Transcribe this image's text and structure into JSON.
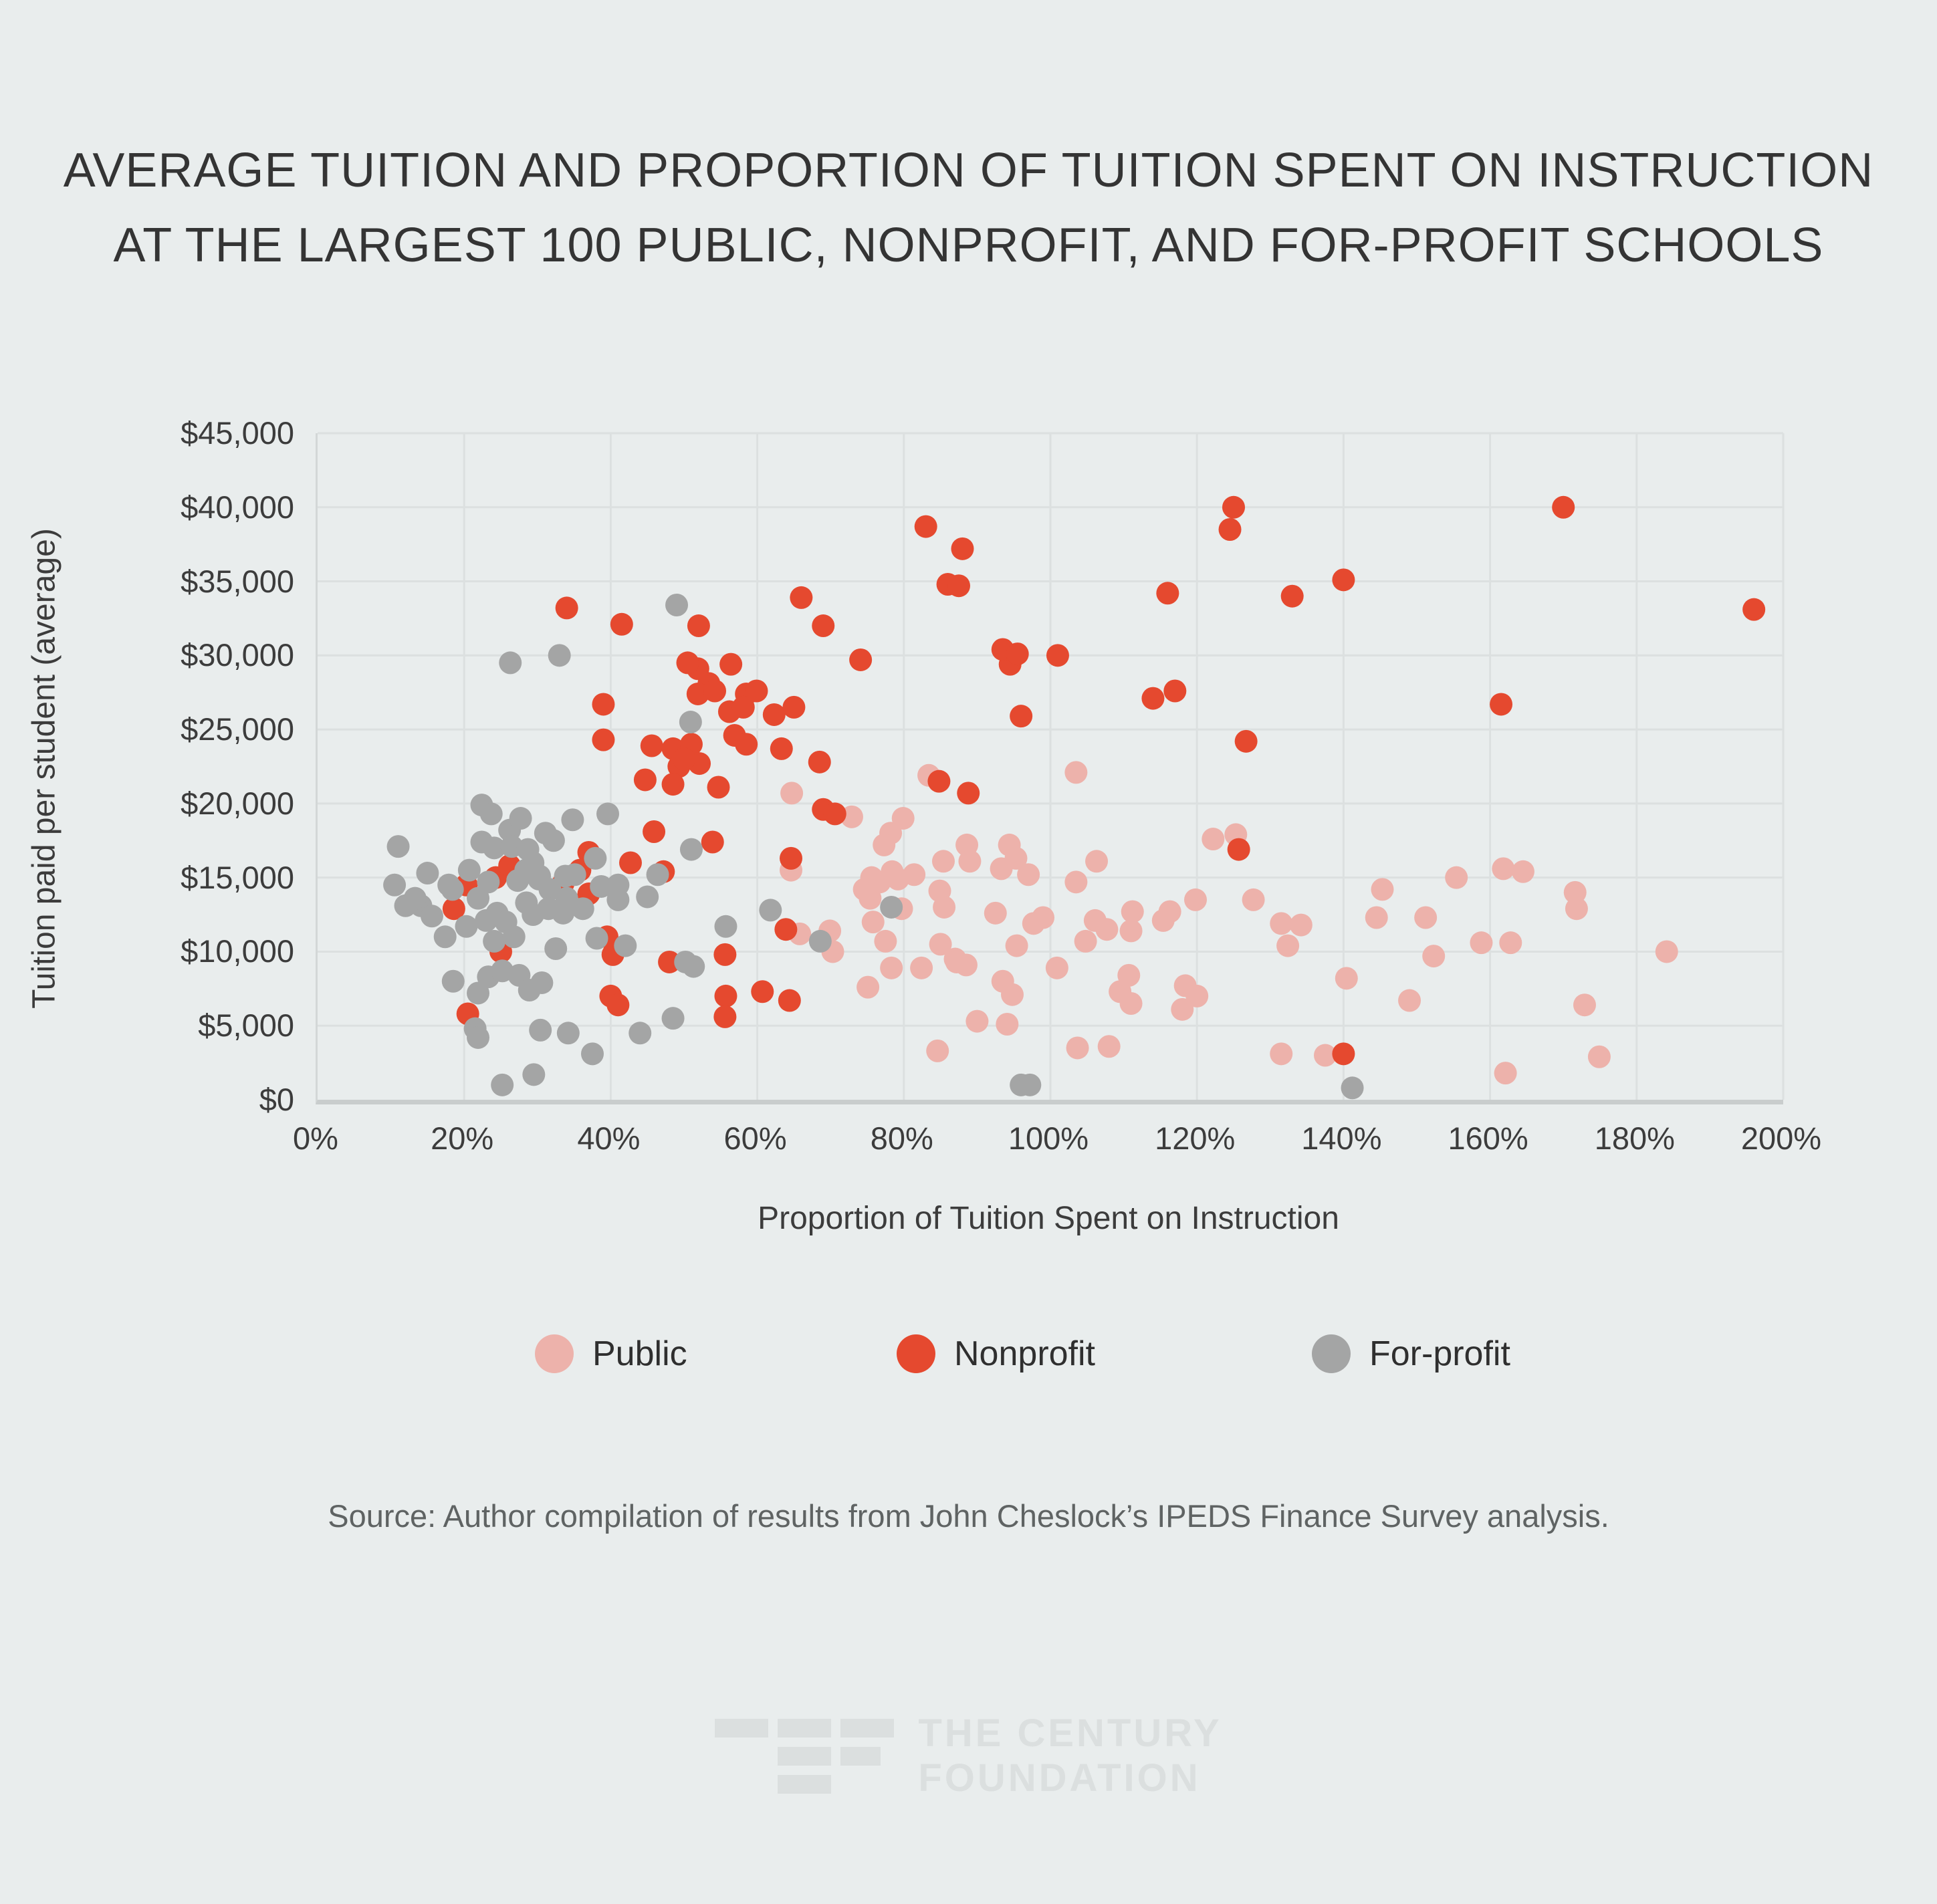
{
  "page": {
    "background": "#e9eded"
  },
  "title": {
    "line1": "AVERAGE TUITION AND PROPORTION OF TUITION SPENT ON INSTRUCTION",
    "line2": "AT THE LARGEST 100 PUBLIC, NONPROFIT, AND FOR-PROFIT SCHOOLS"
  },
  "chart_data": {
    "type": "scatter",
    "title": "Average tuition and proportion of tuition spent on instruction at the largest 100 public, nonprofit, and for-profit schools",
    "xlabel": "Proportion of Tuition Spent on Instruction",
    "ylabel": "Tuition paid per student (average)",
    "xlim": [
      0,
      200
    ],
    "ylim": [
      0,
      45000
    ],
    "grid": true,
    "legend_position": "bottom",
    "x_ticks": [
      {
        "value": 0,
        "label": "0%"
      },
      {
        "value": 20,
        "label": "20%"
      },
      {
        "value": 40,
        "label": "40%"
      },
      {
        "value": 60,
        "label": "60%"
      },
      {
        "value": 80,
        "label": "80%"
      },
      {
        "value": 100,
        "label": "100%"
      },
      {
        "value": 120,
        "label": "120%"
      },
      {
        "value": 140,
        "label": "140%"
      },
      {
        "value": 160,
        "label": "160%"
      },
      {
        "value": 180,
        "label": "180%"
      },
      {
        "value": 200,
        "label": "200%"
      }
    ],
    "y_ticks": [
      {
        "value": 0,
        "label": "$0"
      },
      {
        "value": 5000,
        "label": "$5,000"
      },
      {
        "value": 10000,
        "label": "$10,000"
      },
      {
        "value": 15000,
        "label": "$15,000"
      },
      {
        "value": 20000,
        "label": "$20,000"
      },
      {
        "value": 25000,
        "label": "$25,000"
      },
      {
        "value": 30000,
        "label": "$30,000"
      },
      {
        "value": 35000,
        "label": "$35,000"
      },
      {
        "value": 40000,
        "label": "$40,000"
      },
      {
        "value": 45000,
        "label": "$45,000"
      }
    ],
    "point_radius": 17,
    "series": [
      {
        "name": "Public",
        "color": "#edb2ab",
        "points": [
          [
            64.7,
            20700
          ],
          [
            72.9,
            19100
          ],
          [
            79.9,
            19000
          ],
          [
            78.2,
            18000
          ],
          [
            83.4,
            21900
          ],
          [
            103.5,
            22100
          ],
          [
            122.2,
            17600
          ],
          [
            125.3,
            17900
          ],
          [
            106.3,
            16100
          ],
          [
            85.4,
            16100
          ],
          [
            88.6,
            17200
          ],
          [
            89,
            16100
          ],
          [
            94.4,
            17200
          ],
          [
            95.3,
            16300
          ],
          [
            93.3,
            15600
          ],
          [
            77.3,
            17200
          ],
          [
            75.6,
            15000
          ],
          [
            78.4,
            15400
          ],
          [
            155.4,
            15000
          ],
          [
            161.8,
            15600
          ],
          [
            164.5,
            15400
          ],
          [
            64.6,
            15500
          ],
          [
            65.8,
            11200
          ],
          [
            69.9,
            11400
          ],
          [
            70.3,
            10000
          ],
          [
            75.4,
            13600
          ],
          [
            76.7,
            14700
          ],
          [
            75.8,
            12000
          ],
          [
            79.7,
            12900
          ],
          [
            79.2,
            14900
          ],
          [
            81.4,
            15200
          ],
          [
            84.9,
            14100
          ],
          [
            85.5,
            13000
          ],
          [
            77.5,
            10700
          ],
          [
            92.5,
            12600
          ],
          [
            97,
            15200
          ],
          [
            97.7,
            11900
          ],
          [
            95.4,
            10400
          ],
          [
            85,
            10500
          ],
          [
            87,
            9500
          ],
          [
            88.5,
            9100
          ],
          [
            75.1,
            7600
          ],
          [
            78.3,
            8900
          ],
          [
            82.4,
            8900
          ],
          [
            87.2,
            9300
          ],
          [
            93.5,
            8000
          ],
          [
            94.8,
            7100
          ],
          [
            90,
            5300
          ],
          [
            94.1,
            5100
          ],
          [
            84.6,
            3300
          ],
          [
            74.6,
            14200
          ],
          [
            103.5,
            14700
          ],
          [
            99,
            12300
          ],
          [
            106.1,
            12100
          ],
          [
            107.7,
            11500
          ],
          [
            104.8,
            10700
          ],
          [
            111.2,
            12700
          ],
          [
            111,
            11400
          ],
          [
            115.4,
            12100
          ],
          [
            116.3,
            12700
          ],
          [
            119.8,
            13500
          ],
          [
            127.7,
            13500
          ],
          [
            131.5,
            11900
          ],
          [
            134.2,
            11800
          ],
          [
            132.4,
            10400
          ],
          [
            100.9,
            8900
          ],
          [
            110.7,
            8400
          ],
          [
            109.5,
            7300
          ],
          [
            111,
            6500
          ],
          [
            118.4,
            7700
          ],
          [
            120,
            7000
          ],
          [
            118,
            6100
          ],
          [
            140.4,
            8200
          ],
          [
            103.7,
            3500
          ],
          [
            108,
            3600
          ],
          [
            131.5,
            3100
          ],
          [
            137.5,
            3000
          ],
          [
            145.3,
            14200
          ],
          [
            144.5,
            12300
          ],
          [
            151.2,
            12300
          ],
          [
            152.3,
            9700
          ],
          [
            158.8,
            10600
          ],
          [
            162.8,
            10600
          ],
          [
            171.6,
            14000
          ],
          [
            171.8,
            12900
          ],
          [
            184.1,
            10000
          ],
          [
            149,
            6700
          ],
          [
            172.9,
            6400
          ],
          [
            174.9,
            2900
          ],
          [
            162.1,
            1800
          ]
        ]
      },
      {
        "name": "Nonprofit",
        "color": "#e5492f",
        "points": [
          [
            34,
            33200
          ],
          [
            41.5,
            32100
          ],
          [
            52,
            32000
          ],
          [
            83,
            38700
          ],
          [
            88,
            37200
          ],
          [
            86,
            34800
          ],
          [
            87.5,
            34700
          ],
          [
            66,
            33900
          ],
          [
            69,
            32000
          ],
          [
            125,
            40000
          ],
          [
            124.5,
            38500
          ],
          [
            116,
            34200
          ],
          [
            133,
            34000
          ],
          [
            140,
            35100
          ],
          [
            170,
            40000
          ],
          [
            196,
            33100
          ],
          [
            39,
            26700
          ],
          [
            39,
            24300
          ],
          [
            45.6,
            23900
          ],
          [
            48.5,
            23700
          ],
          [
            49.3,
            22500
          ],
          [
            44.7,
            21600
          ],
          [
            48.5,
            21300
          ],
          [
            56.4,
            29400
          ],
          [
            51.9,
            29100
          ],
          [
            50.5,
            29500
          ],
          [
            53.4,
            28100
          ],
          [
            51.9,
            27400
          ],
          [
            54.2,
            27600
          ],
          [
            58.5,
            27400
          ],
          [
            59.9,
            27600
          ],
          [
            56.2,
            26200
          ],
          [
            58.1,
            26500
          ],
          [
            62.3,
            26000
          ],
          [
            65,
            26500
          ],
          [
            56.9,
            24600
          ],
          [
            58.5,
            24000
          ],
          [
            51,
            24000
          ],
          [
            52.1,
            22700
          ],
          [
            50,
            23000
          ],
          [
            54.7,
            21100
          ],
          [
            63.3,
            23700
          ],
          [
            68.5,
            22800
          ],
          [
            74.1,
            29700
          ],
          [
            69,
            19600
          ],
          [
            70.6,
            19300
          ],
          [
            84.8,
            21500
          ],
          [
            88.8,
            20700
          ],
          [
            94.5,
            29400
          ],
          [
            93.5,
            30400
          ],
          [
            95.5,
            30100
          ],
          [
            96,
            25900
          ],
          [
            101,
            30000
          ],
          [
            114,
            27100
          ],
          [
            117,
            27600
          ],
          [
            126.7,
            24200
          ],
          [
            125.7,
            16900
          ],
          [
            161.5,
            26700
          ],
          [
            37,
            16700
          ],
          [
            42.7,
            16000
          ],
          [
            45.9,
            18100
          ],
          [
            47.2,
            15400
          ],
          [
            53.9,
            17400
          ],
          [
            64.6,
            16300
          ],
          [
            18.6,
            12900
          ],
          [
            20.3,
            14500
          ],
          [
            24.3,
            15000
          ],
          [
            33.5,
            14600
          ],
          [
            35.8,
            15500
          ],
          [
            37,
            13900
          ],
          [
            39.5,
            11000
          ],
          [
            40.3,
            9800
          ],
          [
            25,
            10000
          ],
          [
            20.5,
            5800
          ],
          [
            48,
            9300
          ],
          [
            40,
            7000
          ],
          [
            41,
            6400
          ],
          [
            55.6,
            9800
          ],
          [
            55.7,
            7000
          ],
          [
            55.6,
            5600
          ],
          [
            60.7,
            7300
          ],
          [
            64.4,
            6700
          ],
          [
            63.9,
            11500
          ],
          [
            140,
            3100
          ],
          [
            26.2,
            15800
          ]
        ]
      },
      {
        "name": "For-profit",
        "color": "#a4a5a5",
        "points": [
          [
            49,
            33400
          ],
          [
            26.3,
            29500
          ],
          [
            33,
            30000
          ],
          [
            50.9,
            25500
          ],
          [
            11,
            17100
          ],
          [
            22.4,
            19900
          ],
          [
            23.7,
            19300
          ],
          [
            22.4,
            17400
          ],
          [
            24.1,
            17000
          ],
          [
            26.2,
            18200
          ],
          [
            27.7,
            19000
          ],
          [
            26.5,
            17100
          ],
          [
            28.7,
            16900
          ],
          [
            31.1,
            18000
          ],
          [
            32.2,
            17500
          ],
          [
            34.8,
            18900
          ],
          [
            39.6,
            19300
          ],
          [
            15,
            15300
          ],
          [
            20.7,
            15500
          ],
          [
            29.4,
            16000
          ],
          [
            30.3,
            15100
          ],
          [
            33.8,
            15100
          ],
          [
            37.9,
            16300
          ],
          [
            46.4,
            15200
          ],
          [
            51.3,
            9000
          ],
          [
            50.2,
            9300
          ],
          [
            51,
            16900
          ],
          [
            55.7,
            11700
          ],
          [
            61.8,
            12800
          ],
          [
            68.6,
            10700
          ],
          [
            78.3,
            13000
          ],
          [
            10.5,
            14500
          ],
          [
            14.1,
            13100
          ],
          [
            18.4,
            14200
          ],
          [
            17.9,
            14500
          ],
          [
            13.3,
            13600
          ],
          [
            21.9,
            13600
          ],
          [
            23.3,
            14700
          ],
          [
            27.3,
            14800
          ],
          [
            28.4,
            15500
          ],
          [
            30.2,
            14900
          ],
          [
            31.7,
            14200
          ],
          [
            34,
            13600
          ],
          [
            35.1,
            15200
          ],
          [
            38.7,
            14400
          ],
          [
            41,
            14500
          ],
          [
            41,
            13500
          ],
          [
            45,
            13700
          ],
          [
            12,
            13100
          ],
          [
            15.6,
            12400
          ],
          [
            17.4,
            11000
          ],
          [
            20.3,
            11700
          ],
          [
            23,
            12100
          ],
          [
            24.5,
            12600
          ],
          [
            25.7,
            12000
          ],
          [
            28.5,
            13300
          ],
          [
            29.4,
            12500
          ],
          [
            31.5,
            12900
          ],
          [
            33.5,
            12600
          ],
          [
            36.2,
            12900
          ],
          [
            38.1,
            10900
          ],
          [
            24.1,
            10700
          ],
          [
            26.8,
            11000
          ],
          [
            32.5,
            10200
          ],
          [
            42,
            10400
          ],
          [
            18.5,
            8000
          ],
          [
            21.9,
            7200
          ],
          [
            23.3,
            8300
          ],
          [
            25.2,
            8700
          ],
          [
            27.5,
            8400
          ],
          [
            28.9,
            7400
          ],
          [
            30.6,
            7900
          ],
          [
            21.5,
            4800
          ],
          [
            21.9,
            4200
          ],
          [
            30.4,
            4700
          ],
          [
            34.2,
            4500
          ],
          [
            37.5,
            3100
          ],
          [
            29.5,
            1700
          ],
          [
            25.2,
            1000
          ],
          [
            44,
            4500
          ],
          [
            48.5,
            5500
          ],
          [
            96,
            1000
          ],
          [
            97.2,
            1000
          ],
          [
            141.2,
            800
          ]
        ]
      }
    ]
  },
  "legend": {
    "items": [
      {
        "label": "Public",
        "color": "#edb2ab"
      },
      {
        "label": "Nonprofit",
        "color": "#e5492f"
      },
      {
        "label": "For-profit",
        "color": "#a4a5a5"
      }
    ]
  },
  "source": {
    "text": "Source: Author compilation of results from John Cheslock’s IPEDS Finance Survey analysis."
  },
  "logo": {
    "line1": "THE CENTURY",
    "line2": "FOUNDATION"
  }
}
